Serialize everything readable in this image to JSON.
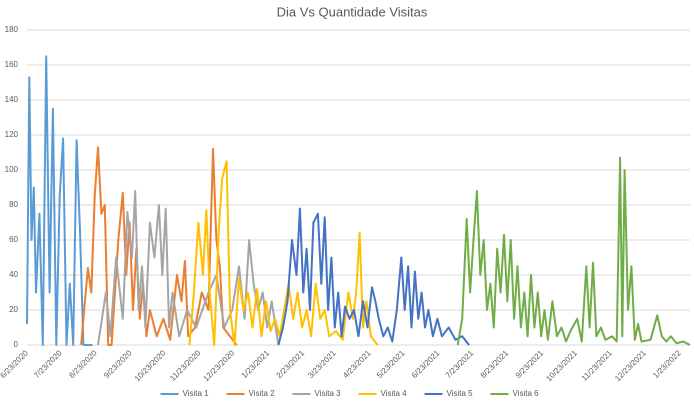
{
  "chart_data": {
    "type": "line",
    "title": "Dia Vs Quantidade Visitas",
    "xlim": [
      "6/23/2020",
      "2/1/2022"
    ],
    "xticks": [
      "6/23/2020",
      "7/23/2020",
      "8/23/2020",
      "9/23/2020",
      "10/23/2020",
      "11/23/2020",
      "12/23/2020",
      "1/23/2021",
      "2/23/2021",
      "3/23/2021",
      "4/23/2021",
      "5/23/2021",
      "6/23/2021",
      "7/23/2021",
      "8/23/2021",
      "9/23/2021",
      "10/23/2021",
      "11/23/2021",
      "12/23/2021",
      "1/23/2022"
    ],
    "ylim": [
      0,
      180
    ],
    "yticks": [
      0,
      20,
      40,
      60,
      80,
      100,
      120,
      140,
      160,
      180
    ],
    "grid": true,
    "legend": "bottom",
    "series": [
      {
        "name": "Visita 1",
        "color": "#5b9bd5",
        "x": [
          "6/23/2020",
          "6/25/2020",
          "6/27/2020",
          "6/29/2020",
          "7/1/2020",
          "7/4/2020",
          "7/7/2020",
          "7/10/2020",
          "7/13/2020",
          "7/16/2020",
          "7/19/2020",
          "7/22/2020",
          "7/25/2020",
          "7/28/2020",
          "7/31/2020",
          "8/3/2020",
          "8/6/2020",
          "8/9/2020",
          "8/12/2020",
          "8/20/2020"
        ],
        "values": [
          12,
          153,
          60,
          90,
          30,
          75,
          0,
          165,
          30,
          135,
          0,
          85,
          118,
          0,
          35,
          0,
          117,
          65,
          0,
          0
        ]
      },
      {
        "name": "Visita 2",
        "color": "#ed7d31",
        "x": [
          "8/10/2020",
          "8/16/2020",
          "8/19/2020",
          "8/22/2020",
          "8/25/2020",
          "8/28/2020",
          "8/31/2020",
          "9/3/2020",
          "9/6/2020",
          "9/12/2020",
          "9/16/2020",
          "9/19/2020",
          "9/22/2020",
          "9/25/2020",
          "9/28/2020",
          "10/1/2020",
          "10/4/2020",
          "10/7/2020",
          "10/10/2020",
          "10/16/2020",
          "10/22/2020",
          "10/28/2020",
          "11/3/2020",
          "11/7/2020",
          "11/10/2020",
          "11/13/2020",
          "11/19/2020",
          "11/25/2020",
          "12/1/2020",
          "12/5/2020",
          "12/8/2020",
          "12/11/2020",
          "12/14/2020",
          "12/20/2020",
          "12/26/2020"
        ],
        "values": [
          0,
          44,
          30,
          85,
          113,
          75,
          80,
          0,
          0,
          60,
          87,
          40,
          70,
          20,
          55,
          15,
          35,
          5,
          20,
          5,
          15,
          3,
          40,
          25,
          48,
          5,
          10,
          30,
          20,
          112,
          60,
          45,
          10,
          5,
          0
        ]
      },
      {
        "name": "Visita 3",
        "color": "#a5a5a5",
        "x": [
          "8/25/2020",
          "9/1/2020",
          "9/5/2020",
          "9/10/2020",
          "9/16/2020",
          "9/20/2020",
          "9/24/2020",
          "9/27/2020",
          "9/30/2020",
          "10/3/2020",
          "10/6/2020",
          "10/10/2020",
          "10/14/2020",
          "10/18/2020",
          "10/21/2020",
          "10/24/2020",
          "10/27/2020",
          "10/30/2020",
          "11/5/2020",
          "11/12/2020",
          "11/20/2020",
          "12/1/2020",
          "12/8/2020",
          "12/15/2020",
          "12/22/2020",
          "12/28/2020",
          "1/2/2021",
          "1/6/2021",
          "1/10/2021",
          "1/14/2021",
          "1/18/2021",
          "1/22/2021",
          "1/26/2021",
          "2/1/2021"
        ],
        "values": [
          0,
          30,
          5,
          50,
          15,
          76,
          50,
          88,
          20,
          45,
          10,
          70,
          50,
          80,
          40,
          78,
          10,
          30,
          5,
          20,
          10,
          30,
          40,
          10,
          20,
          45,
          15,
          60,
          35,
          20,
          30,
          10,
          25,
          0
        ]
      },
      {
        "name": "Visita 4",
        "color": "#ffc000",
        "x": [
          "11/14/2020",
          "11/18/2020",
          "11/22/2020",
          "11/26/2020",
          "11/29/2020",
          "12/2/2020",
          "12/6/2020",
          "12/10/2020",
          "12/13/2020",
          "12/17/2020",
          "12/20/2020",
          "12/24/2020",
          "12/28/2020",
          "1/1/2021",
          "1/5/2021",
          "1/9/2021",
          "1/13/2021",
          "1/17/2021",
          "1/21/2021",
          "1/25/2021",
          "1/29/2021",
          "2/2/2021",
          "2/6/2021",
          "2/10/2021",
          "2/14/2021",
          "2/18/2021",
          "2/22/2021",
          "2/26/2021",
          "3/2/2021",
          "3/6/2021",
          "3/10/2021",
          "3/14/2021",
          "3/18/2021",
          "3/24/2021",
          "3/30/2021",
          "4/4/2021",
          "4/8/2021",
          "4/11/2021",
          "4/14/2021",
          "4/17/2021",
          "4/20/2021",
          "4/24/2021",
          "4/30/2021"
        ],
        "values": [
          0,
          30,
          70,
          40,
          77,
          30,
          0,
          65,
          95,
          105,
          20,
          0,
          38,
          20,
          30,
          10,
          32,
          5,
          25,
          8,
          15,
          5,
          20,
          35,
          15,
          30,
          10,
          20,
          5,
          35,
          15,
          20,
          5,
          8,
          3,
          30,
          15,
          30,
          64,
          10,
          25,
          5,
          0
        ]
      },
      {
        "name": "Visita 5",
        "color": "#4472c4",
        "x": [
          "2/1/2021",
          "2/5/2021",
          "2/9/2021",
          "2/13/2021",
          "2/17/2021",
          "2/20/2021",
          "2/23/2021",
          "2/26/2021",
          "3/1/2021",
          "3/4/2021",
          "3/8/2021",
          "3/11/2021",
          "3/14/2021",
          "3/17/2021",
          "3/20/2021",
          "3/23/2021",
          "3/26/2021",
          "3/29/2021",
          "4/1/2021",
          "4/5/2021",
          "4/9/2021",
          "4/13/2021",
          "4/17/2021",
          "4/21/2021",
          "4/25/2021",
          "4/28/2021",
          "5/1/2021",
          "5/5/2021",
          "5/9/2021",
          "5/13/2021",
          "5/17/2021",
          "5/21/2021",
          "5/24/2021",
          "5/27/2021",
          "5/30/2021",
          "6/2/2021",
          "6/5/2021",
          "6/8/2021",
          "6/11/2021",
          "6/14/2021",
          "6/18/2021",
          "6/22/2021",
          "6/26/2021",
          "7/2/2021",
          "7/8/2021",
          "7/14/2021",
          "7/20/2021"
        ],
        "values": [
          0,
          10,
          25,
          60,
          40,
          78,
          30,
          55,
          20,
          70,
          75,
          35,
          73,
          20,
          50,
          10,
          30,
          5,
          22,
          15,
          20,
          5,
          25,
          10,
          33,
          25,
          15,
          5,
          10,
          2,
          20,
          50,
          20,
          45,
          10,
          42,
          15,
          30,
          10,
          20,
          5,
          15,
          5,
          10,
          3,
          5,
          0
        ]
      },
      {
        "name": "Visita 6",
        "color": "#70ad47",
        "x": [
          "7/10/2021",
          "7/14/2021",
          "7/18/2021",
          "7/21/2021",
          "7/24/2021",
          "7/27/2021",
          "7/30/2021",
          "8/2/2021",
          "8/5/2021",
          "8/8/2021",
          "8/11/2021",
          "8/14/2021",
          "8/17/2021",
          "8/20/2021",
          "8/23/2021",
          "8/26/2021",
          "8/29/2021",
          "9/1/2021",
          "9/4/2021",
          "9/7/2021",
          "9/10/2021",
          "9/13/2021",
          "9/16/2021",
          "9/19/2021",
          "9/22/2021",
          "9/25/2021",
          "9/28/2021",
          "10/2/2021",
          "10/6/2021",
          "10/10/2021",
          "10/14/2021",
          "10/18/2021",
          "10/24/2021",
          "10/28/2021",
          "11/1/2021",
          "11/4/2021",
          "11/7/2021",
          "11/10/2021",
          "11/14/2021",
          "11/18/2021",
          "11/24/2021",
          "11/28/2021",
          "12/1/2021",
          "12/3/2021",
          "12/5/2021",
          "12/8/2021",
          "12/11/2021",
          "12/14/2021",
          "12/17/2021",
          "12/20/2021",
          "12/28/2021",
          "1/3/2022",
          "1/7/2022",
          "1/11/2022",
          "1/15/2022",
          "1/20/2022",
          "1/26/2022",
          "2/1/2022"
        ],
        "values": [
          0,
          15,
          72,
          30,
          60,
          88,
          40,
          60,
          20,
          35,
          10,
          55,
          30,
          63,
          25,
          60,
          15,
          45,
          10,
          30,
          5,
          40,
          10,
          30,
          5,
          20,
          3,
          25,
          5,
          10,
          2,
          8,
          15,
          2,
          45,
          10,
          47,
          5,
          10,
          3,
          5,
          2,
          107,
          5,
          100,
          20,
          45,
          3,
          12,
          2,
          3,
          17,
          5,
          2,
          5,
          1,
          2,
          0
        ]
      }
    ]
  }
}
